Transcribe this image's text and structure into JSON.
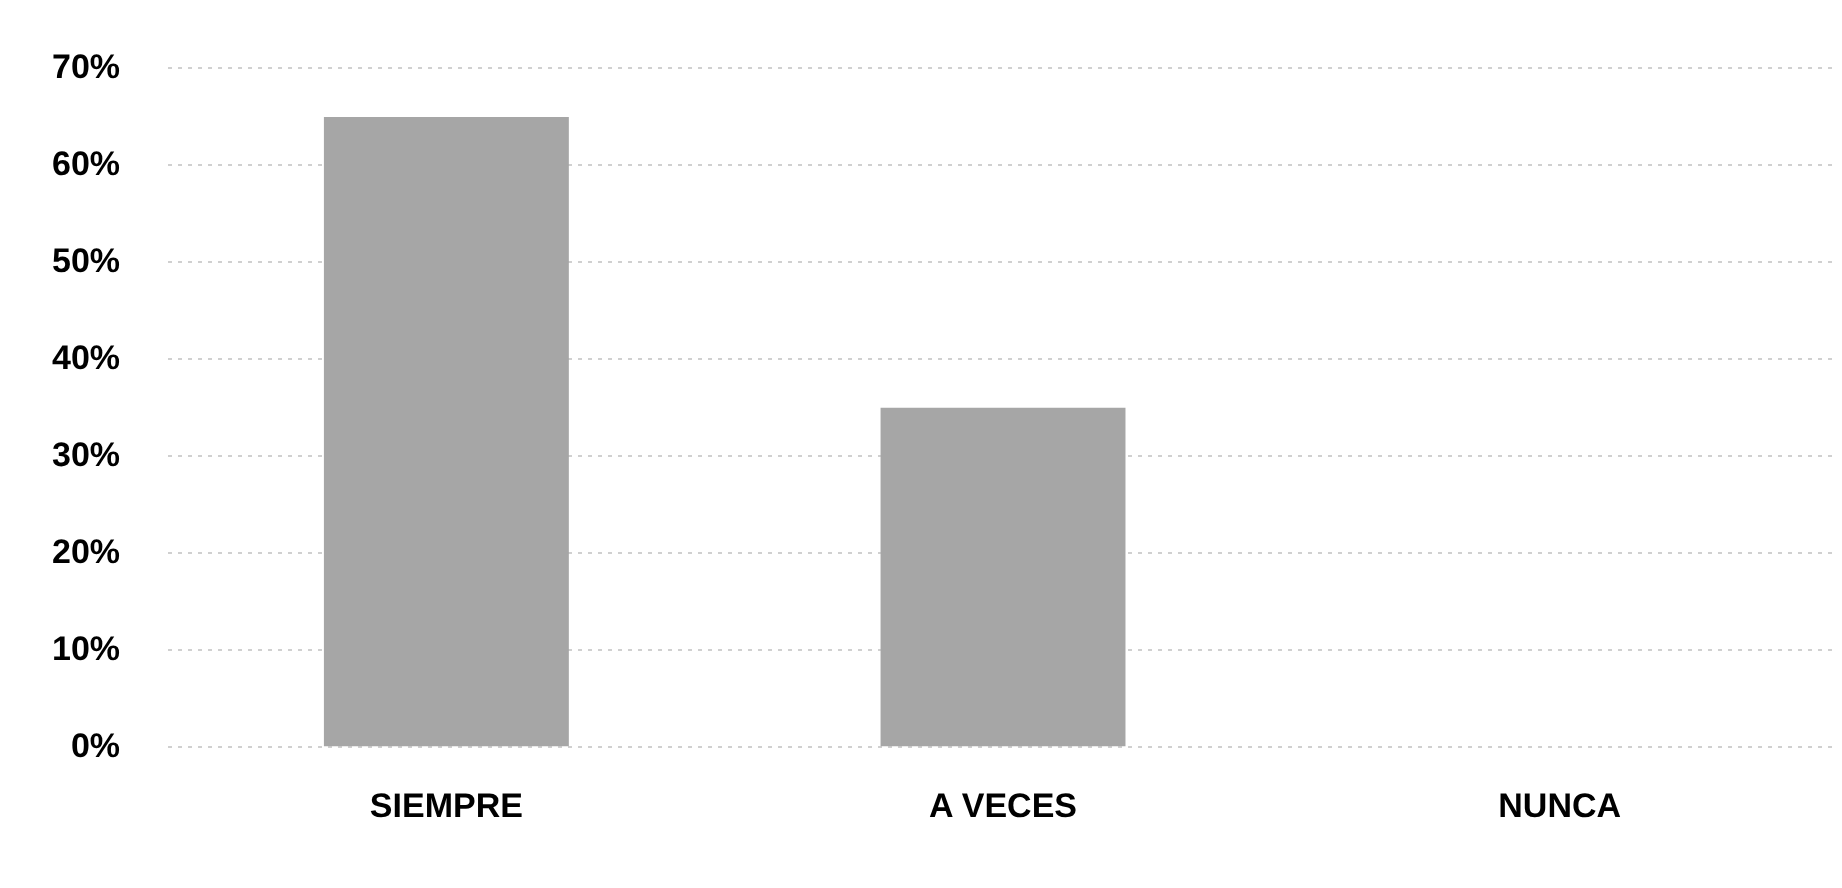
{
  "chart_data": {
    "type": "bar",
    "categories": [
      "SIEMPRE",
      "A VECES",
      "NUNCA"
    ],
    "values": [
      65,
      35,
      0
    ],
    "color": "#a6a6a6",
    "ylim": [
      0,
      70
    ],
    "yticks": [
      {
        "value": 0,
        "label": "0%"
      },
      {
        "value": 10,
        "label": "10%"
      },
      {
        "value": 20,
        "label": "20%"
      },
      {
        "value": 30,
        "label": "30%"
      },
      {
        "value": 40,
        "label": "40%"
      },
      {
        "value": 50,
        "label": "50%"
      },
      {
        "value": 60,
        "label": "60%"
      },
      {
        "value": 70,
        "label": "70%"
      }
    ],
    "grid": "y",
    "legend": false
  }
}
